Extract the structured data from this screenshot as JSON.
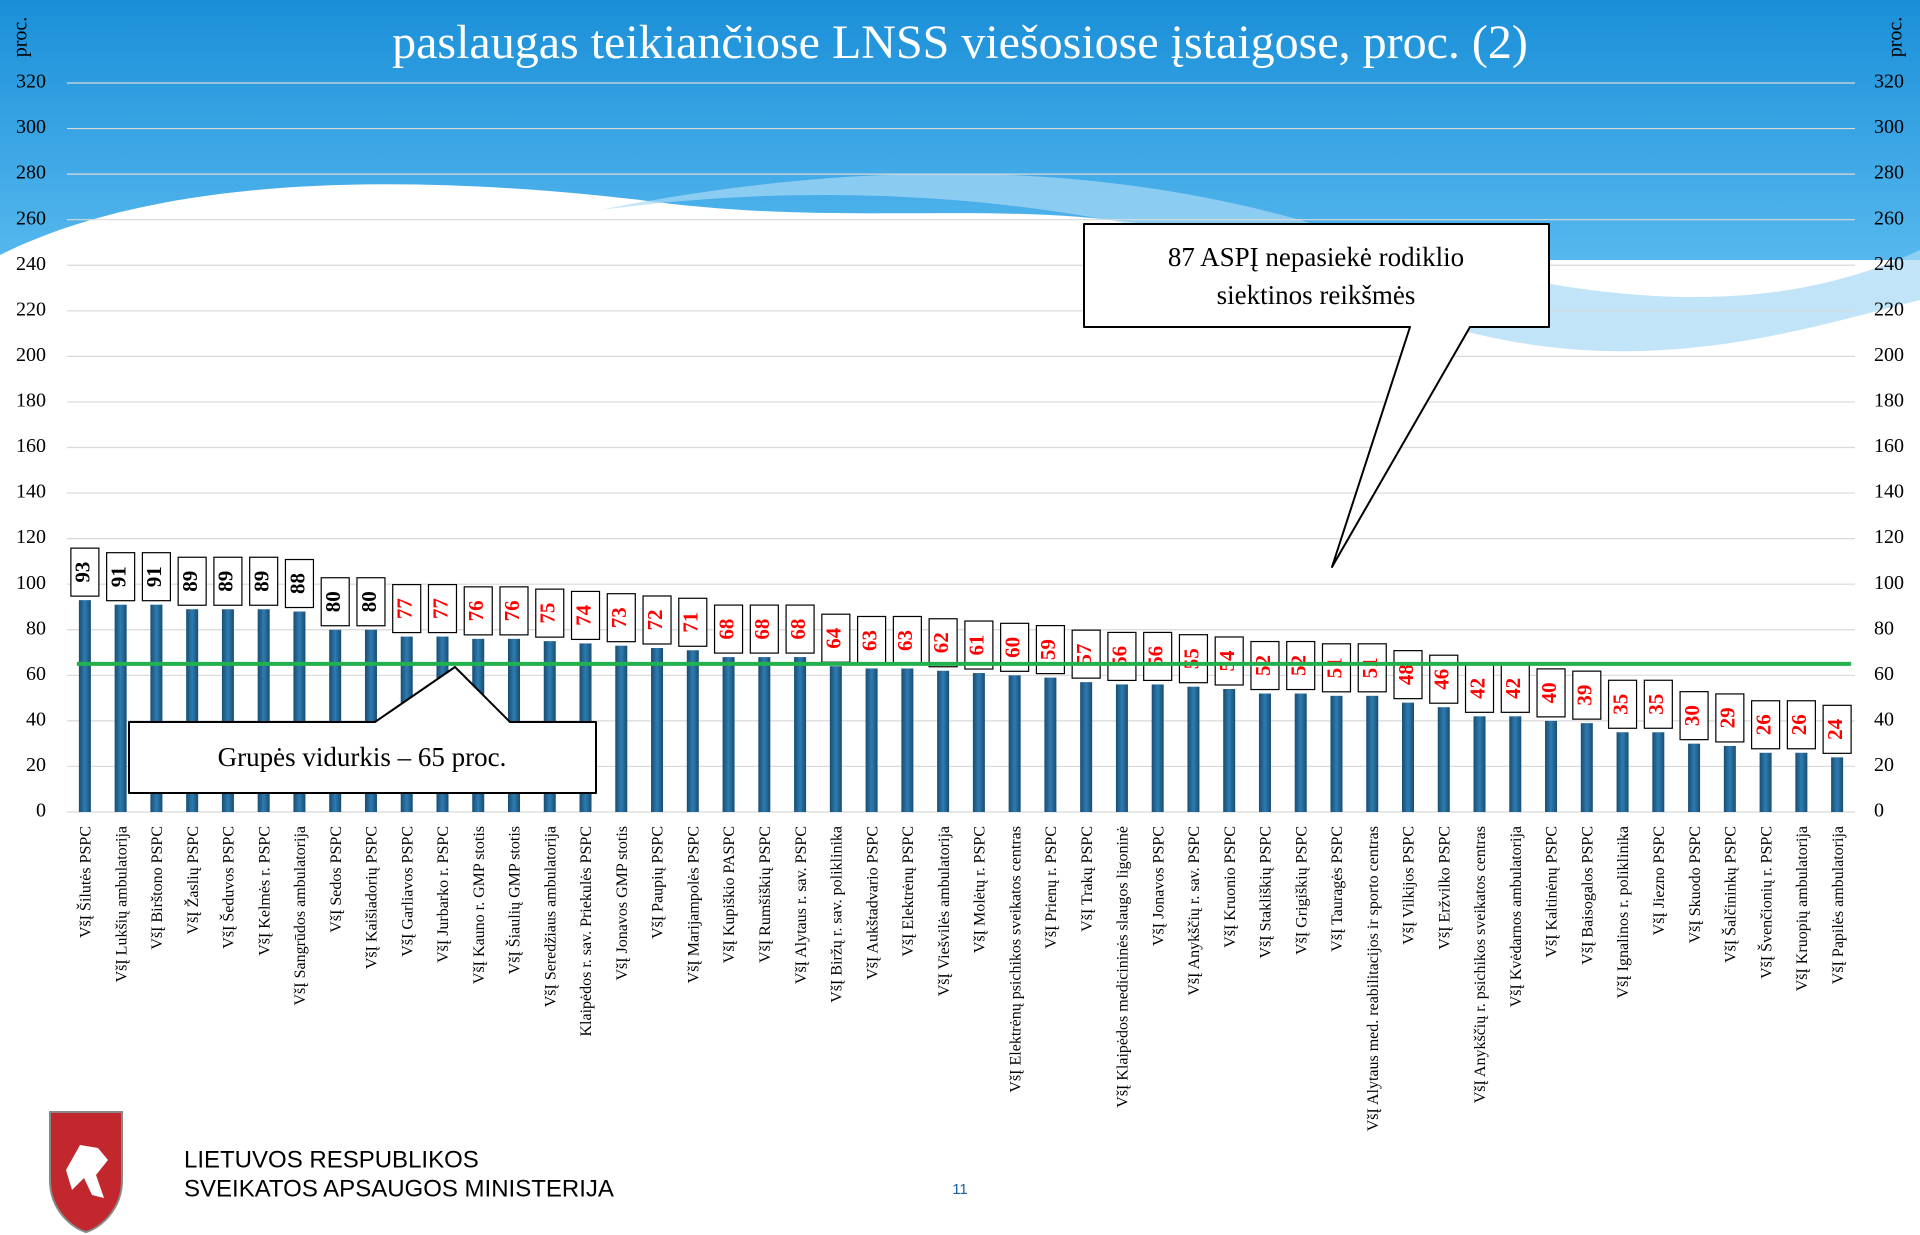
{
  "chart_data": {
    "type": "bar",
    "title": "paslaugas teikiančiose LNSS viešosiose įstaigose, proc. (2)",
    "y_label": "proc.",
    "y2_label": "proc.",
    "categories": [
      "VšĮ Šilutės PSPC",
      "VšĮ Lukšių ambulatorija",
      "VšĮ Birštono PSPC",
      "VšĮ Žaslių PSPC",
      "VšĮ Šeduvos PSPC",
      "VšĮ Kelmės r. PSPC",
      "VšĮ Sangrūdos ambulatorija",
      "VšĮ Sedos PSPC",
      "VšĮ Kaišiadorių PSPC",
      "VšĮ Garliavos PSPC",
      "VšĮ Jurbarko r. PSPC",
      "VšĮ Kauno r. GMP stotis",
      "VšĮ Šiaulių GMP stotis",
      "VšĮ Seredžiaus ambulatorija",
      "Klaipėdos r. sav. Priekulės PSPC",
      "VšĮ Jonavos GMP stotis",
      "VšĮ Paupių PSPC",
      "VšĮ Marijampolės PSPC",
      "VšĮ Kupiškio PASPC",
      "VšĮ Rumšiškių PSPC",
      "VšĮ Alytaus r. sav. PSPC",
      "VšĮ Biržų r. sav. poliklinika",
      "VšĮ Aukštadvario PSPC",
      "VšĮ Elektrėnų PSPC",
      "VšĮ Viešvilės ambulatorija",
      "VšĮ Molėtų r. PSPC",
      "VšĮ Elektrėnų psichikos sveikatos centras",
      "VšĮ Prienų r. PSPC",
      "VšĮ Trakų  PSPC",
      "VšĮ Klaipėdos medicininės slaugos ligoninė",
      "VšĮ Jonavos PSPC",
      "VšĮ Anykščių r. sav. PSPC",
      "VšĮ Kruonio PSPC",
      "VšĮ Stakliškių PSPC",
      "VšĮ Grigiškių PSPC",
      "VšĮ Tauragės PSPC",
      "VšĮ Alytaus med. reabilitacijos ir sporto centras",
      "VšĮ Vilkijos PSPC",
      "VšĮ Eržvilko PSPC",
      "VšĮ Anykščių r. psichikos sveikatos centras",
      "VšĮ Kvėdarnos ambulatorija",
      "VšĮ Kaltinėnų PSPC",
      "VšĮ Baisogalos PSPC",
      "VšĮ Ignalinos r. poliklinika",
      "VšĮ Jiezno PSPC",
      "VšĮ Skuodo PSPC",
      "VšĮ Šalčininkų PSPC",
      "VšĮ Švenčionių r. PSPC",
      "VšĮ Kruopių ambulatorija",
      "VšĮ Papilės ambulatorija"
    ],
    "values": [
      93,
      91,
      91,
      89,
      89,
      89,
      88,
      80,
      80,
      77,
      77,
      76,
      76,
      75,
      74,
      73,
      72,
      71,
      68,
      68,
      68,
      64,
      63,
      63,
      62,
      61,
      60,
      59,
      57,
      56,
      56,
      55,
      54,
      52,
      52,
      51,
      51,
      48,
      46,
      42,
      42,
      40,
      39,
      35,
      35,
      30,
      29,
      26,
      26,
      24
    ],
    "label_colors": [
      "#000000",
      "#000000",
      "#000000",
      "#000000",
      "#000000",
      "#000000",
      "#000000",
      "#000000",
      "#000000",
      "#ff0000",
      "#ff0000",
      "#ff0000",
      "#ff0000",
      "#ff0000",
      "#ff0000",
      "#ff0000",
      "#ff0000",
      "#ff0000",
      "#ff0000",
      "#ff0000",
      "#ff0000",
      "#ff0000",
      "#ff0000",
      "#ff0000",
      "#ff0000",
      "#ff0000",
      "#ff0000",
      "#ff0000",
      "#ff0000",
      "#ff0000",
      "#ff0000",
      "#ff0000",
      "#ff0000",
      "#ff0000",
      "#ff0000",
      "#ff0000",
      "#ff0000",
      "#ff0000",
      "#ff0000",
      "#ff0000",
      "#ff0000",
      "#ff0000",
      "#ff0000",
      "#ff0000",
      "#ff0000",
      "#ff0000",
      "#ff0000",
      "#ff0000",
      "#ff0000",
      "#ff0000"
    ],
    "color": "#1f5f8b",
    "ylim": [
      0,
      320
    ],
    "yticks": [
      0,
      20,
      40,
      60,
      80,
      100,
      120,
      140,
      160,
      180,
      200,
      220,
      240,
      260,
      280,
      300,
      320
    ],
    "y2lim": [
      0,
      320
    ],
    "y2ticks": [
      0,
      20,
      40,
      60,
      80,
      100,
      120,
      140,
      160,
      180,
      200,
      220,
      240,
      260,
      280,
      300,
      320
    ],
    "grid": true,
    "reference_line": {
      "value": 65,
      "color": "#22b14c"
    },
    "annotations": [
      "87 ASPĮ nepasiekė rodiklio",
      "siektinos reikšmės",
      "Grupės vidurkis – 65 proc."
    ]
  },
  "footer": {
    "org_line1": "LIETUVOS RESPUBLIKOS",
    "org_line2": "SVEIKATOS APSAUGOS MINISTERIJA",
    "page_number": "11"
  }
}
